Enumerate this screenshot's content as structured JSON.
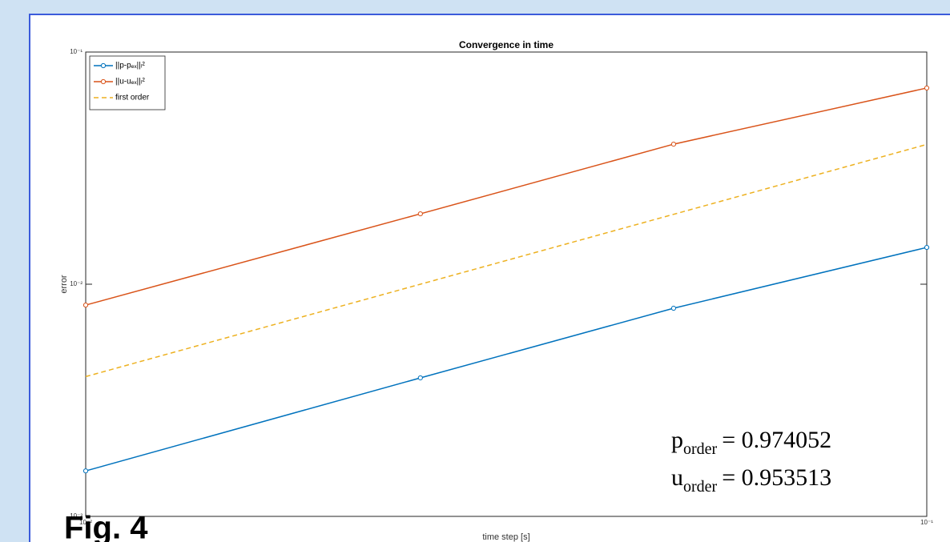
{
  "chart_data": {
    "type": "line",
    "title": "Convergence in time",
    "x_label": "time step [s]",
    "y_label": "error",
    "x": [
      0.01,
      0.025,
      0.05,
      0.1
    ],
    "xlog": true,
    "ylog": true,
    "xlim": [
      0.01,
      0.1
    ],
    "ylim": [
      0.001,
      0.1
    ],
    "xticks": [
      {
        "value": 0.01,
        "label": "10⁻²"
      },
      {
        "value": 0.1,
        "label": "10⁻¹"
      }
    ],
    "yticks": [
      {
        "value": 0.001,
        "label": "10⁻³"
      },
      {
        "value": 0.01,
        "label": "10⁻²"
      },
      {
        "value": 0.1,
        "label": "10⁻¹"
      }
    ],
    "legend": "upper left",
    "series": [
      {
        "name": "||p-pₑₓ||ₗ²",
        "color": "#0072bd",
        "style": "solid",
        "markers": true,
        "values": [
          0.00157,
          0.00395,
          0.00788,
          0.0144
        ]
      },
      {
        "name": "||u-uₑₓ||ₗ²",
        "color": "#d95319",
        "style": "solid",
        "markers": true,
        "values": [
          0.00813,
          0.0201,
          0.0401,
          0.07
        ]
      },
      {
        "name": "first order",
        "color": "#edb120",
        "style": "dashed",
        "markers": false,
        "values": [
          0.004,
          0.01,
          0.02,
          0.04
        ]
      }
    ],
    "annotations": [
      {
        "symbol": "p",
        "subscript": "order",
        "text": "= 0.974052"
      },
      {
        "symbol": "u",
        "subscript": "order",
        "text": "= 0.953513"
      }
    ],
    "figure_label": "Fig. 4"
  }
}
